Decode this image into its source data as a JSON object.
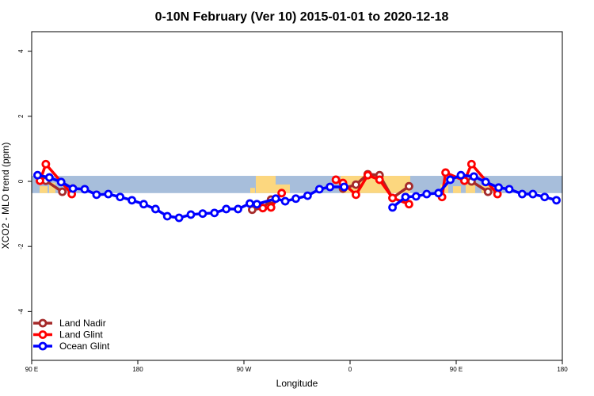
{
  "chart_data": {
    "type": "line",
    "title": "0-10N February (Ver 10)   2015-01-01 to 2020-12-18",
    "xlabel": "Longitude",
    "ylabel": "XCO2 - MLO trend (ppm)",
    "x_range_lon_east_start": 90,
    "x_ticks": [
      {
        "lon": 90,
        "label": "90 E"
      },
      {
        "lon": 180,
        "label": "180"
      },
      {
        "lon": -90,
        "label": "90 W"
      },
      {
        "lon": 0,
        "label": "0"
      },
      {
        "lon": 90,
        "label": "90 E",
        "wrapped": true
      },
      {
        "lon": 180,
        "label": "180",
        "wrapped": true
      }
    ],
    "y_ticks": [
      4,
      2,
      0,
      -2,
      -4
    ],
    "ylim": [
      -5.5,
      4.6
    ],
    "grid": false,
    "legend_position": "bottom-left",
    "band": {
      "ymin": -0.36,
      "ymax": 0.17,
      "ocean_color": "#a7bedb",
      "land_color": "#fcd77f"
    },
    "series": [
      {
        "name": "Land Nadir",
        "color": "#a52a2a",
        "points": [
          [
            102,
            0.02
          ],
          [
            116,
            -0.32
          ],
          null,
          [
            -83,
            -0.87
          ],
          [
            -74,
            -0.82
          ],
          [
            -67,
            -0.56
          ],
          null,
          [
            -6,
            -0.22
          ],
          [
            5,
            -0.1
          ],
          [
            15,
            0.22
          ],
          [
            25,
            0.19
          ],
          [
            36,
            -0.51
          ],
          [
            50,
            -0.15
          ],
          null,
          [
            103,
            0.0
          ],
          [
            117,
            -0.32
          ]
        ]
      },
      {
        "name": "Land Glint",
        "color": "#ff0000",
        "points": [
          [
            97,
            0.02
          ],
          [
            102,
            0.53
          ],
          [
            124,
            -0.39
          ],
          null,
          [
            -74,
            -0.82
          ],
          [
            -67,
            -0.8
          ],
          [
            -58,
            -0.36
          ],
          null,
          [
            -12,
            0.05
          ],
          [
            -6,
            -0.05
          ],
          [
            5,
            -0.41
          ],
          [
            15,
            0.19
          ],
          [
            25,
            0.05
          ],
          [
            36,
            -0.51
          ],
          [
            50,
            -0.7
          ],
          null,
          [
            78,
            -0.48
          ],
          [
            81,
            0.27
          ],
          [
            97,
            0.02
          ],
          [
            103,
            0.53
          ],
          [
            125,
            -0.39
          ]
        ]
      },
      {
        "name": "Ocean Glint",
        "color": "#0000ff",
        "points": [
          [
            95,
            0.19
          ],
          [
            105,
            0.12
          ],
          [
            115,
            -0.02
          ],
          [
            125,
            -0.22
          ],
          [
            135,
            -0.24
          ],
          [
            145,
            -0.41
          ],
          [
            155,
            -0.39
          ],
          [
            165,
            -0.48
          ],
          [
            175,
            -0.58
          ],
          [
            -175,
            -0.7
          ],
          [
            -165,
            -0.85
          ],
          [
            -155,
            -1.07
          ],
          [
            -145,
            -1.12
          ],
          [
            -135,
            -1.02
          ],
          [
            -125,
            -0.99
          ],
          [
            -115,
            -0.97
          ],
          [
            -105,
            -0.85
          ],
          [
            -95,
            -0.85
          ],
          [
            -85,
            -0.68
          ],
          [
            -79,
            -0.7
          ],
          [
            -63,
            -0.53
          ],
          [
            -55,
            -0.61
          ],
          [
            -46,
            -0.53
          ],
          [
            -36,
            -0.44
          ],
          [
            -26,
            -0.24
          ],
          [
            -17,
            -0.17
          ],
          [
            -5,
            -0.17
          ],
          null,
          [
            36,
            -0.8
          ],
          [
            47,
            -0.48
          ],
          [
            56,
            -0.46
          ],
          [
            65,
            -0.39
          ],
          [
            75,
            -0.36
          ],
          [
            85,
            0.05
          ],
          [
            94,
            0.19
          ],
          [
            105,
            0.15
          ],
          [
            115,
            -0.02
          ],
          [
            126,
            -0.19
          ],
          [
            135,
            -0.24
          ],
          [
            146,
            -0.39
          ],
          [
            155,
            -0.39
          ],
          [
            165,
            -0.48
          ],
          [
            175,
            -0.58
          ]
        ]
      }
    ]
  }
}
